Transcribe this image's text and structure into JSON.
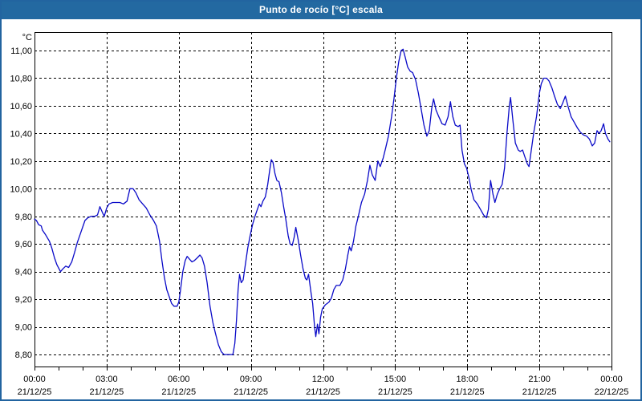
{
  "window": {
    "title": "Punto de rocío [°C] escala"
  },
  "colors": {
    "titlebar_bg": "#2369a1",
    "frame_border": "#2264a0",
    "plot_bg": "#ffffff",
    "grid": "#000000",
    "axis_text": "#000000",
    "series_line": "#0a0ac8"
  },
  "chart_data": {
    "type": "line",
    "title": "Punto de rocío [°C] escala",
    "y_unit": "°C",
    "grid": "dashed",
    "legend_position": "none",
    "xlim_hours": [
      0,
      24
    ],
    "ylim": [
      8.7133,
      11.1335
    ],
    "y_ticks": [
      {
        "value": 11.0,
        "label": "11,00"
      },
      {
        "value": 10.8,
        "label": "10,80"
      },
      {
        "value": 10.6,
        "label": "10,60"
      },
      {
        "value": 10.4,
        "label": "10,40"
      },
      {
        "value": 10.2,
        "label": "10,20"
      },
      {
        "value": 10.0,
        "label": "10,00"
      },
      {
        "value": 9.8,
        "label": "9,80"
      },
      {
        "value": 9.6,
        "label": "9,60"
      },
      {
        "value": 9.4,
        "label": "9,40"
      },
      {
        "value": 9.2,
        "label": "9,20"
      },
      {
        "value": 9.0,
        "label": "9,00"
      },
      {
        "value": 8.8,
        "label": "8,80"
      }
    ],
    "x_ticks": [
      {
        "hour": 0,
        "time": "00:00",
        "date": "21/12/25"
      },
      {
        "hour": 3,
        "time": "03:00",
        "date": "21/12/25"
      },
      {
        "hour": 6,
        "time": "06:00",
        "date": "21/12/25"
      },
      {
        "hour": 9,
        "time": "09:00",
        "date": "21/12/25"
      },
      {
        "hour": 12,
        "time": "12:00",
        "date": "21/12/25"
      },
      {
        "hour": 15,
        "time": "15:00",
        "date": "21/12/25"
      },
      {
        "hour": 18,
        "time": "18:00",
        "date": "21/12/25"
      },
      {
        "hour": 21,
        "time": "21:00",
        "date": "21/12/25"
      },
      {
        "hour": 24,
        "time": "00:00",
        "date": "22/12/25"
      }
    ],
    "minor_x_tick_every_hours": 1,
    "series": [
      {
        "name": "Punto de rocío",
        "color": "#0a0ac8",
        "points": [
          [
            0.0,
            9.78
          ],
          [
            0.08,
            9.77
          ],
          [
            0.17,
            9.74
          ],
          [
            0.28,
            9.73
          ],
          [
            0.33,
            9.7
          ],
          [
            0.45,
            9.67
          ],
          [
            0.55,
            9.64
          ],
          [
            0.62,
            9.62
          ],
          [
            0.72,
            9.57
          ],
          [
            0.83,
            9.5
          ],
          [
            0.93,
            9.45
          ],
          [
            1.08,
            9.4
          ],
          [
            1.18,
            9.42
          ],
          [
            1.3,
            9.44
          ],
          [
            1.42,
            9.43
          ],
          [
            1.55,
            9.47
          ],
          [
            1.67,
            9.54
          ],
          [
            1.78,
            9.61
          ],
          [
            1.9,
            9.67
          ],
          [
            2.0,
            9.72
          ],
          [
            2.1,
            9.77
          ],
          [
            2.22,
            9.79
          ],
          [
            2.35,
            9.8
          ],
          [
            2.5,
            9.8
          ],
          [
            2.62,
            9.81
          ],
          [
            2.72,
            9.87
          ],
          [
            2.82,
            9.83
          ],
          [
            2.9,
            9.8
          ],
          [
            3.0,
            9.86
          ],
          [
            3.1,
            9.89
          ],
          [
            3.25,
            9.9
          ],
          [
            3.4,
            9.9
          ],
          [
            3.55,
            9.9
          ],
          [
            3.7,
            9.89
          ],
          [
            3.85,
            9.91
          ],
          [
            3.97,
            10.0
          ],
          [
            4.1,
            10.0
          ],
          [
            4.22,
            9.97
          ],
          [
            4.35,
            9.92
          ],
          [
            4.5,
            9.89
          ],
          [
            4.65,
            9.86
          ],
          [
            4.8,
            9.81
          ],
          [
            4.95,
            9.77
          ],
          [
            5.07,
            9.73
          ],
          [
            5.2,
            9.62
          ],
          [
            5.3,
            9.48
          ],
          [
            5.4,
            9.36
          ],
          [
            5.5,
            9.27
          ],
          [
            5.6,
            9.22
          ],
          [
            5.7,
            9.17
          ],
          [
            5.8,
            9.15
          ],
          [
            5.93,
            9.15
          ],
          [
            6.0,
            9.18
          ],
          [
            6.07,
            9.26
          ],
          [
            6.17,
            9.4
          ],
          [
            6.27,
            9.48
          ],
          [
            6.35,
            9.51
          ],
          [
            6.45,
            9.49
          ],
          [
            6.55,
            9.47
          ],
          [
            6.65,
            9.48
          ],
          [
            6.77,
            9.5
          ],
          [
            6.88,
            9.52
          ],
          [
            6.97,
            9.5
          ],
          [
            7.07,
            9.44
          ],
          [
            7.18,
            9.32
          ],
          [
            7.3,
            9.15
          ],
          [
            7.42,
            9.03
          ],
          [
            7.53,
            8.95
          ],
          [
            7.65,
            8.87
          ],
          [
            7.77,
            8.82
          ],
          [
            7.88,
            8.8
          ],
          [
            8.0,
            8.8
          ],
          [
            8.13,
            8.8
          ],
          [
            8.25,
            8.8
          ],
          [
            8.33,
            8.88
          ],
          [
            8.4,
            9.05
          ],
          [
            8.47,
            9.27
          ],
          [
            8.53,
            9.38
          ],
          [
            8.6,
            9.32
          ],
          [
            8.68,
            9.34
          ],
          [
            8.77,
            9.45
          ],
          [
            8.87,
            9.57
          ],
          [
            8.97,
            9.66
          ],
          [
            9.07,
            9.74
          ],
          [
            9.17,
            9.8
          ],
          [
            9.27,
            9.85
          ],
          [
            9.35,
            9.89
          ],
          [
            9.42,
            9.87
          ],
          [
            9.5,
            9.91
          ],
          [
            9.6,
            9.94
          ],
          [
            9.7,
            10.03
          ],
          [
            9.78,
            10.13
          ],
          [
            9.85,
            10.21
          ],
          [
            9.92,
            10.19
          ],
          [
            10.0,
            10.11
          ],
          [
            10.08,
            10.06
          ],
          [
            10.17,
            10.05
          ],
          [
            10.27,
            9.97
          ],
          [
            10.37,
            9.86
          ],
          [
            10.45,
            9.78
          ],
          [
            10.55,
            9.66
          ],
          [
            10.63,
            9.6
          ],
          [
            10.72,
            9.59
          ],
          [
            10.8,
            9.65
          ],
          [
            10.87,
            9.72
          ],
          [
            10.97,
            9.63
          ],
          [
            11.07,
            9.52
          ],
          [
            11.17,
            9.42
          ],
          [
            11.27,
            9.35
          ],
          [
            11.33,
            9.34
          ],
          [
            11.4,
            9.38
          ],
          [
            11.5,
            9.25
          ],
          [
            11.57,
            9.17
          ],
          [
            11.65,
            9.0
          ],
          [
            11.7,
            8.93
          ],
          [
            11.77,
            9.02
          ],
          [
            11.83,
            8.95
          ],
          [
            11.9,
            9.07
          ],
          [
            11.97,
            9.13
          ],
          [
            12.1,
            9.16
          ],
          [
            12.25,
            9.18
          ],
          [
            12.35,
            9.21
          ],
          [
            12.45,
            9.27
          ],
          [
            12.55,
            9.3
          ],
          [
            12.7,
            9.3
          ],
          [
            12.82,
            9.34
          ],
          [
            12.93,
            9.42
          ],
          [
            13.03,
            9.52
          ],
          [
            13.1,
            9.58
          ],
          [
            13.17,
            9.55
          ],
          [
            13.27,
            9.62
          ],
          [
            13.37,
            9.73
          ],
          [
            13.47,
            9.8
          ],
          [
            13.6,
            9.9
          ],
          [
            13.73,
            9.96
          ],
          [
            13.85,
            10.06
          ],
          [
            13.95,
            10.17
          ],
          [
            14.05,
            10.1
          ],
          [
            14.17,
            10.06
          ],
          [
            14.28,
            10.2
          ],
          [
            14.38,
            10.16
          ],
          [
            14.5,
            10.22
          ],
          [
            14.6,
            10.29
          ],
          [
            14.72,
            10.38
          ],
          [
            14.85,
            10.52
          ],
          [
            14.95,
            10.65
          ],
          [
            15.05,
            10.8
          ],
          [
            15.15,
            10.92
          ],
          [
            15.25,
            11.0
          ],
          [
            15.33,
            11.01
          ],
          [
            15.42,
            10.95
          ],
          [
            15.52,
            10.88
          ],
          [
            15.63,
            10.85
          ],
          [
            15.73,
            10.84
          ],
          [
            15.85,
            10.79
          ],
          [
            15.97,
            10.69
          ],
          [
            16.08,
            10.58
          ],
          [
            16.2,
            10.46
          ],
          [
            16.32,
            10.38
          ],
          [
            16.42,
            10.42
          ],
          [
            16.52,
            10.58
          ],
          [
            16.6,
            10.65
          ],
          [
            16.7,
            10.57
          ],
          [
            16.82,
            10.52
          ],
          [
            16.95,
            10.47
          ],
          [
            17.08,
            10.46
          ],
          [
            17.2,
            10.52
          ],
          [
            17.3,
            10.63
          ],
          [
            17.4,
            10.52
          ],
          [
            17.5,
            10.46
          ],
          [
            17.62,
            10.45
          ],
          [
            17.7,
            10.46
          ],
          [
            17.78,
            10.28
          ],
          [
            17.88,
            10.18
          ],
          [
            17.97,
            10.15
          ],
          [
            18.07,
            10.08
          ],
          [
            18.17,
            9.99
          ],
          [
            18.28,
            9.92
          ],
          [
            18.42,
            9.89
          ],
          [
            18.55,
            9.85
          ],
          [
            18.68,
            9.81
          ],
          [
            18.8,
            9.79
          ],
          [
            18.88,
            9.85
          ],
          [
            18.97,
            10.06
          ],
          [
            19.07,
            9.96
          ],
          [
            19.15,
            9.9
          ],
          [
            19.25,
            9.96
          ],
          [
            19.35,
            10.0
          ],
          [
            19.45,
            10.03
          ],
          [
            19.55,
            10.15
          ],
          [
            19.65,
            10.4
          ],
          [
            19.75,
            10.6
          ],
          [
            19.8,
            10.66
          ],
          [
            19.9,
            10.49
          ],
          [
            20.0,
            10.33
          ],
          [
            20.12,
            10.28
          ],
          [
            20.2,
            10.27
          ],
          [
            20.3,
            10.28
          ],
          [
            20.4,
            10.23
          ],
          [
            20.5,
            10.18
          ],
          [
            20.57,
            10.16
          ],
          [
            20.65,
            10.26
          ],
          [
            20.77,
            10.41
          ],
          [
            20.88,
            10.52
          ],
          [
            21.0,
            10.69
          ],
          [
            21.08,
            10.76
          ],
          [
            21.18,
            10.8
          ],
          [
            21.3,
            10.8
          ],
          [
            21.4,
            10.78
          ],
          [
            21.52,
            10.73
          ],
          [
            21.63,
            10.67
          ],
          [
            21.75,
            10.61
          ],
          [
            21.87,
            10.58
          ],
          [
            21.97,
            10.62
          ],
          [
            22.08,
            10.67
          ],
          [
            22.2,
            10.59
          ],
          [
            22.32,
            10.52
          ],
          [
            22.45,
            10.48
          ],
          [
            22.58,
            10.44
          ],
          [
            22.7,
            10.41
          ],
          [
            22.83,
            10.39
          ],
          [
            22.97,
            10.38
          ],
          [
            23.08,
            10.36
          ],
          [
            23.2,
            10.31
          ],
          [
            23.3,
            10.33
          ],
          [
            23.4,
            10.42
          ],
          [
            23.48,
            10.4
          ],
          [
            23.57,
            10.42
          ],
          [
            23.67,
            10.47
          ],
          [
            23.75,
            10.4
          ],
          [
            23.85,
            10.36
          ],
          [
            23.93,
            10.34
          ]
        ]
      }
    ]
  }
}
